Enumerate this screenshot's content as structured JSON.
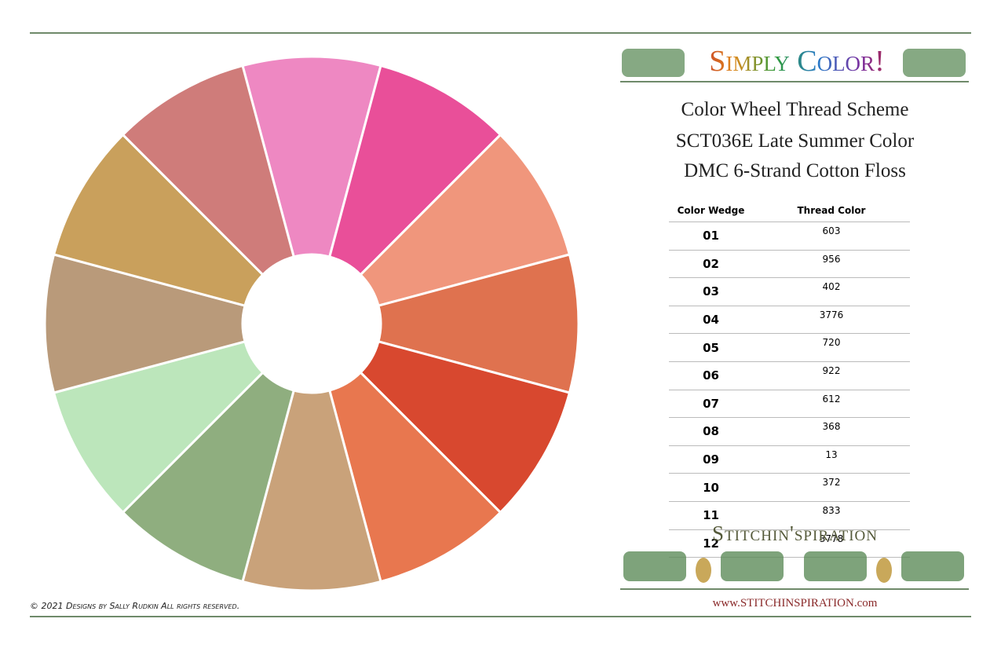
{
  "header": {
    "brand": "Simply Color!",
    "title_lines": [
      "Color Wheel Thread Scheme",
      "SCT036E Late Summer Color",
      "DMC 6-Strand Cotton Floss"
    ]
  },
  "table": {
    "columns": [
      "Color Wedge",
      "Thread Color"
    ],
    "rows": [
      [
        "01",
        "603"
      ],
      [
        "02",
        "956"
      ],
      [
        "03",
        "402"
      ],
      [
        "04",
        "3776"
      ],
      [
        "05",
        "720"
      ],
      [
        "06",
        "922"
      ],
      [
        "07",
        "612"
      ],
      [
        "08",
        "368"
      ],
      [
        "09",
        "13"
      ],
      [
        "10",
        "372"
      ],
      [
        "11",
        "833"
      ],
      [
        "12",
        "3778"
      ]
    ]
  },
  "footer": {
    "brand": "Stitchin'spiration",
    "url": "www.STITCHINSPIRATION.com",
    "copyright": "© 2021 Designs by Sally Rudkin  All rights reserved."
  }
}
